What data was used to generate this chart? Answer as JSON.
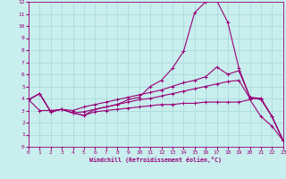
{
  "xlabel": "Windchill (Refroidissement éolien,°C)",
  "bg_color": "#c8eeee",
  "grid_color": "#a8d8d8",
  "line_color": "#990077",
  "xlim": [
    0,
    23
  ],
  "ylim": [
    0,
    12
  ],
  "xticks": [
    0,
    1,
    2,
    3,
    4,
    5,
    6,
    7,
    8,
    9,
    10,
    11,
    12,
    13,
    14,
    15,
    16,
    17,
    18,
    19,
    20,
    21,
    22,
    23
  ],
  "yticks": [
    0,
    1,
    2,
    3,
    4,
    5,
    6,
    7,
    8,
    9,
    10,
    11,
    12
  ],
  "line1_x": [
    0,
    1,
    2,
    3,
    4,
    5,
    6,
    7,
    8,
    9,
    10,
    11,
    12,
    13,
    14,
    15,
    16,
    17,
    18,
    19,
    20,
    21,
    22,
    23
  ],
  "line1_y": [
    3.9,
    3.0,
    3.0,
    3.1,
    2.8,
    2.6,
    3.1,
    3.3,
    3.5,
    3.9,
    4.1,
    5.0,
    5.5,
    6.5,
    7.9,
    11.1,
    12.0,
    12.1,
    10.3,
    6.5,
    4.1,
    3.9,
    2.5,
    0.5
  ],
  "line2_x": [
    0,
    1,
    2,
    3,
    4,
    5,
    6,
    7,
    8,
    9,
    10,
    11,
    12,
    13,
    14,
    15,
    16,
    17,
    18,
    19,
    20,
    21,
    22,
    23
  ],
  "line2_y": [
    3.9,
    4.4,
    2.9,
    3.1,
    3.0,
    3.3,
    3.5,
    3.7,
    3.9,
    4.1,
    4.3,
    4.5,
    4.7,
    5.0,
    5.3,
    5.5,
    5.8,
    6.6,
    6.0,
    6.3,
    4.1,
    4.0,
    2.5,
    0.5
  ],
  "line3_x": [
    0,
    1,
    2,
    3,
    4,
    5,
    6,
    7,
    8,
    9,
    10,
    11,
    12,
    13,
    14,
    15,
    16,
    17,
    18,
    19,
    20,
    21,
    22,
    23
  ],
  "line3_y": [
    3.9,
    4.4,
    2.9,
    3.1,
    2.8,
    2.9,
    3.1,
    3.3,
    3.5,
    3.7,
    3.9,
    4.0,
    4.2,
    4.4,
    4.6,
    4.8,
    5.0,
    5.2,
    5.4,
    5.5,
    4.0,
    4.0,
    2.5,
    0.5
  ],
  "line4_x": [
    0,
    1,
    2,
    3,
    4,
    5,
    6,
    7,
    8,
    9,
    10,
    11,
    12,
    13,
    14,
    15,
    16,
    17,
    18,
    19,
    20,
    21,
    22,
    23
  ],
  "line4_y": [
    3.9,
    4.4,
    2.9,
    3.1,
    2.8,
    2.6,
    2.9,
    3.0,
    3.1,
    3.2,
    3.3,
    3.4,
    3.5,
    3.5,
    3.6,
    3.6,
    3.7,
    3.7,
    3.7,
    3.7,
    3.9,
    2.5,
    1.7,
    0.5
  ]
}
